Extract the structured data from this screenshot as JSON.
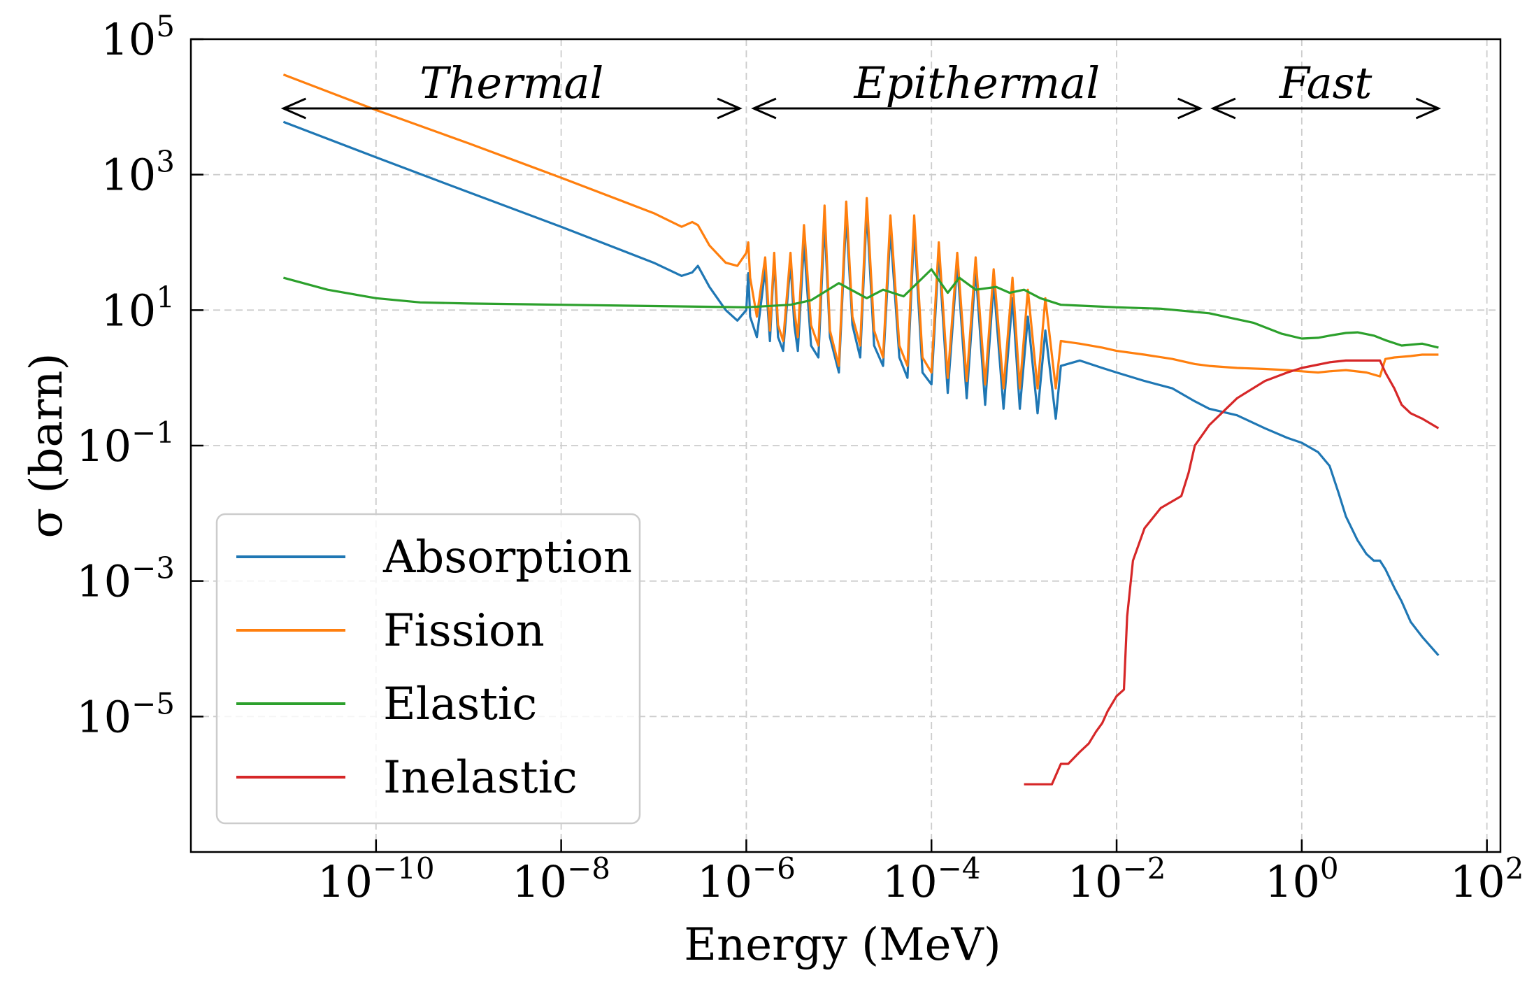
{
  "chart_data": {
    "type": "line",
    "x_scale": "log",
    "y_scale": "log",
    "xlabel": "Energy (MeV)",
    "ylabel": "σ (barn)",
    "xlim": [
      1e-12,
      140.0
    ],
    "ylim": [
      1e-07,
      100000.0
    ],
    "grid": true,
    "legend_position": "bottom-left",
    "x_ticks": [
      {
        "value": 1e-10,
        "base": "10",
        "exp": "−10"
      },
      {
        "value": 1e-08,
        "base": "10",
        "exp": "−8"
      },
      {
        "value": 1e-06,
        "base": "10",
        "exp": "−6"
      },
      {
        "value": 0.0001,
        "base": "10",
        "exp": "−4"
      },
      {
        "value": 0.01,
        "base": "10",
        "exp": "−2"
      },
      {
        "value": 1,
        "base": "10",
        "exp": "0"
      },
      {
        "value": 100,
        "base": "10",
        "exp": "2"
      }
    ],
    "y_ticks": [
      {
        "value": 1e-05,
        "base": "10",
        "exp": "−5"
      },
      {
        "value": 0.001,
        "base": "10",
        "exp": "−3"
      },
      {
        "value": 0.1,
        "base": "10",
        "exp": "−1"
      },
      {
        "value": 10,
        "base": "10",
        "exp": "1"
      },
      {
        "value": 1000,
        "base": "10",
        "exp": "3"
      },
      {
        "value": 100000,
        "base": "10",
        "exp": "5"
      }
    ],
    "regions": [
      {
        "label": "Thermal",
        "x_start": 1e-11,
        "x_end": 8.5e-07
      },
      {
        "label": "Epithermal",
        "x_start": 1.2e-06,
        "x_end": 0.08
      },
      {
        "label": "Fast",
        "x_start": 0.11,
        "x_end": 30
      }
    ],
    "series": [
      {
        "name": "Absorption",
        "color": "#1f77b4",
        "x": [
          1e-11,
          1e-10,
          1e-09,
          1e-08,
          1e-07,
          2e-07,
          2.6e-07,
          3e-07,
          4e-07,
          6e-07,
          8e-07,
          1e-06,
          1.05e-06,
          1.1e-06,
          1.3e-06,
          1.6e-06,
          1.8e-06,
          2e-06,
          2.2e-06,
          2.5e-06,
          3e-06,
          3.3e-06,
          3.6e-06,
          4.2e-06,
          5e-06,
          6e-06,
          7e-06,
          8e-06,
          1e-05,
          1.2e-05,
          1.4e-05,
          1.7e-05,
          2e-05,
          2.4e-05,
          3e-05,
          3.6e-05,
          4.5e-05,
          5.5e-05,
          6.5e-05,
          8e-05,
          0.0001,
          0.00012,
          0.00015,
          0.00019,
          0.00024,
          0.0003,
          0.00038,
          0.00047,
          0.0006,
          0.00075,
          0.0009,
          0.0011,
          0.0014,
          0.0017,
          0.0022,
          0.0025,
          0.004,
          0.007,
          0.01,
          0.02,
          0.04,
          0.07,
          0.1,
          0.2,
          0.4,
          0.7,
          1,
          1.5,
          2,
          2.5,
          3,
          4,
          5,
          6,
          7,
          8,
          10,
          12,
          15,
          20,
          30
        ],
        "values": [
          6000,
          1800,
          550,
          170,
          50,
          32,
          36,
          45,
          22,
          10,
          7,
          10,
          35,
          8,
          4,
          40,
          3.5,
          60,
          4,
          2.5,
          50,
          6,
          2.5,
          100,
          3,
          2,
          200,
          4,
          1.2,
          250,
          6,
          2,
          300,
          3,
          1.5,
          150,
          2,
          1,
          160,
          1.2,
          0.8,
          70,
          0.6,
          50,
          0.5,
          40,
          0.4,
          25,
          0.35,
          15,
          0.35,
          8,
          0.3,
          5,
          0.25,
          1.5,
          1.8,
          1.4,
          1.2,
          0.9,
          0.7,
          0.45,
          0.35,
          0.28,
          0.18,
          0.13,
          0.11,
          0.08,
          0.05,
          0.02,
          0.009,
          0.004,
          0.0025,
          0.002,
          0.002,
          0.0015,
          0.0008,
          0.0005,
          0.00025,
          0.00015,
          8e-05
        ]
      },
      {
        "name": "Fission",
        "color": "#ff7f0e",
        "x": [
          1e-11,
          1e-10,
          1e-09,
          1e-08,
          1e-07,
          2e-07,
          2.6e-07,
          3e-07,
          4e-07,
          6e-07,
          8e-07,
          1e-06,
          1.05e-06,
          1.1e-06,
          1.3e-06,
          1.6e-06,
          1.8e-06,
          2e-06,
          2.2e-06,
          2.5e-06,
          3e-06,
          3.3e-06,
          3.6e-06,
          4.2e-06,
          5e-06,
          6e-06,
          7e-06,
          8e-06,
          1e-05,
          1.2e-05,
          1.4e-05,
          1.7e-05,
          2e-05,
          2.4e-05,
          3e-05,
          3.6e-05,
          4.5e-05,
          5.5e-05,
          6.5e-05,
          8e-05,
          0.0001,
          0.00012,
          0.00015,
          0.00019,
          0.00024,
          0.0003,
          0.00038,
          0.00047,
          0.0006,
          0.00075,
          0.0009,
          0.0011,
          0.0014,
          0.0017,
          0.0022,
          0.0025,
          0.004,
          0.007,
          0.01,
          0.02,
          0.04,
          0.07,
          0.1,
          0.2,
          0.4,
          0.7,
          1,
          1.5,
          2,
          3,
          5,
          7,
          8,
          10,
          15,
          20,
          30
        ],
        "values": [
          30000,
          9000,
          2900,
          900,
          270,
          170,
          200,
          180,
          90,
          50,
          45,
          70,
          100,
          30,
          8,
          60,
          5,
          70,
          6,
          3.5,
          70,
          10,
          4,
          180,
          6,
          3,
          350,
          5,
          1.5,
          400,
          8,
          3,
          450,
          5,
          2,
          250,
          3,
          1.5,
          250,
          2,
          1.2,
          100,
          1,
          70,
          0.9,
          60,
          0.8,
          40,
          0.7,
          30,
          0.7,
          20,
          0.7,
          15,
          0.7,
          3.5,
          3.2,
          2.8,
          2.5,
          2.2,
          1.9,
          1.6,
          1.5,
          1.4,
          1.35,
          1.3,
          1.25,
          1.2,
          1.25,
          1.3,
          1.2,
          1.05,
          1.9,
          2,
          2.1,
          2.2,
          2.2
        ]
      },
      {
        "name": "Elastic",
        "color": "#2ca02c",
        "x": [
          1e-11,
          3e-11,
          1e-10,
          3e-10,
          1e-09,
          1e-08,
          1e-07,
          1e-06,
          3e-06,
          5e-06,
          1e-05,
          2e-05,
          3e-05,
          5e-05,
          0.0001,
          0.00015,
          0.0002,
          0.0003,
          0.0005,
          0.0007,
          0.001,
          0.0015,
          0.0025,
          0.005,
          0.01,
          0.03,
          0.1,
          0.3,
          0.6,
          1,
          1.5,
          2,
          3,
          4,
          6,
          8,
          12,
          20,
          30
        ],
        "values": [
          30,
          20,
          15,
          13,
          12.5,
          12,
          11.5,
          11,
          12,
          14,
          25,
          15,
          20,
          16,
          40,
          18,
          30,
          20,
          22,
          18,
          20,
          15,
          12,
          11.5,
          11,
          10.5,
          9,
          6.5,
          4.5,
          3.8,
          3.9,
          4.2,
          4.6,
          4.7,
          4.2,
          3.6,
          3,
          3.2,
          2.8
        ]
      },
      {
        "name": "Inelastic",
        "color": "#d62728",
        "x": [
          0.001,
          0.002,
          0.0025,
          0.003,
          0.004,
          0.005,
          0.006,
          0.007,
          0.008,
          0.01,
          0.012,
          0.013,
          0.015,
          0.02,
          0.03,
          0.05,
          0.06,
          0.07,
          0.1,
          0.2,
          0.4,
          0.7,
          1,
          2,
          3,
          5,
          7,
          8,
          10,
          12,
          15,
          20,
          30
        ],
        "values": [
          1e-06,
          1e-06,
          2e-06,
          2e-06,
          3e-06,
          4e-06,
          6e-06,
          8e-06,
          1.2e-05,
          2e-05,
          2.5e-05,
          0.0003,
          0.002,
          0.006,
          0.012,
          0.018,
          0.04,
          0.1,
          0.2,
          0.5,
          0.9,
          1.2,
          1.4,
          1.7,
          1.8,
          1.8,
          1.8,
          1.2,
          0.7,
          0.4,
          0.3,
          0.25,
          0.18
        ]
      }
    ]
  }
}
